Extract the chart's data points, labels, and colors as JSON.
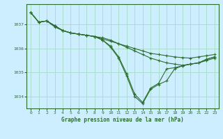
{
  "background_color": "#cceeff",
  "grid_color": "#aaddcc",
  "line_color": "#2d6e2d",
  "marker_color": "#2d6e2d",
  "title": "Graphe pression niveau de la mer (hPa)",
  "xlim": [
    -0.5,
    23.5
  ],
  "ylim": [
    1033.5,
    1037.85
  ],
  "yticks": [
    1034,
    1035,
    1036,
    1037
  ],
  "xticks": [
    0,
    1,
    2,
    3,
    4,
    5,
    6,
    7,
    8,
    9,
    10,
    11,
    12,
    13,
    14,
    15,
    16,
    17,
    18,
    19,
    20,
    21,
    22,
    23
  ],
  "series": [
    {
      "x": [
        0,
        1,
        2,
        3,
        4,
        5,
        6,
        7,
        8,
        9,
        10,
        11,
        12,
        13,
        14,
        15,
        16,
        17,
        18,
        19,
        20,
        21,
        22,
        23
      ],
      "y": [
        1037.5,
        1037.1,
        1037.15,
        1036.95,
        1036.75,
        1036.65,
        1036.6,
        1036.55,
        1036.5,
        1036.4,
        1036.3,
        1036.2,
        1036.1,
        1036.0,
        1035.9,
        1035.8,
        1035.75,
        1035.7,
        1035.65,
        1035.62,
        1035.6,
        1035.65,
        1035.7,
        1035.75
      ]
    },
    {
      "x": [
        0,
        1,
        2,
        3,
        4,
        5,
        6,
        7,
        8,
        9,
        10,
        11,
        12,
        13,
        14,
        15,
        16,
        17,
        18,
        19,
        20,
        21,
        22,
        23
      ],
      "y": [
        1037.5,
        1037.1,
        1037.15,
        1036.9,
        1036.75,
        1036.65,
        1036.6,
        1036.55,
        1036.5,
        1036.45,
        1036.35,
        1036.2,
        1036.05,
        1035.9,
        1035.75,
        1035.6,
        1035.5,
        1035.4,
        1035.35,
        1035.3,
        1035.35,
        1035.4,
        1035.5,
        1035.6
      ]
    },
    {
      "x": [
        0,
        1,
        2,
        3,
        4,
        5,
        6,
        7,
        8,
        9,
        10,
        11,
        12,
        13,
        14,
        15,
        16,
        17,
        18,
        19,
        20,
        21,
        22,
        23
      ],
      "y": [
        1037.5,
        1037.1,
        1037.15,
        1036.95,
        1036.75,
        1036.65,
        1036.6,
        1036.55,
        1036.5,
        1036.35,
        1036.05,
        1035.6,
        1034.85,
        1034.0,
        1033.7,
        1034.3,
        1034.5,
        1034.65,
        1035.15,
        1035.28,
        1035.35,
        1035.4,
        1035.55,
        1035.65
      ]
    },
    {
      "x": [
        0,
        1,
        2,
        3,
        4,
        5,
        6,
        7,
        8,
        9,
        10,
        11,
        12,
        13,
        14,
        15,
        16,
        17,
        18,
        19,
        20,
        21,
        22,
        23
      ],
      "y": [
        1037.5,
        1037.1,
        1037.15,
        1036.95,
        1036.75,
        1036.65,
        1036.6,
        1036.55,
        1036.5,
        1036.35,
        1036.1,
        1035.65,
        1034.95,
        1034.1,
        1033.75,
        1034.35,
        1034.55,
        1035.15,
        1035.2,
        1035.28,
        1035.35,
        1035.4,
        1035.55,
        1035.65
      ]
    }
  ]
}
